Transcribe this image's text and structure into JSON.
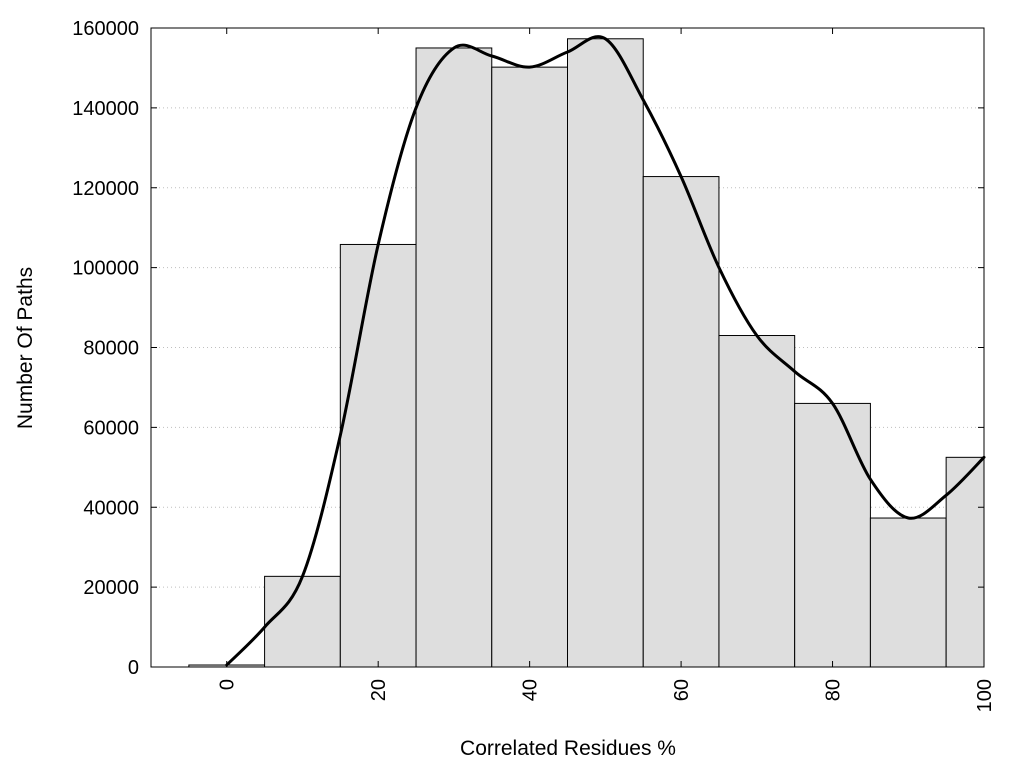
{
  "chart_data": {
    "type": "bar",
    "title": "",
    "xlabel": "Correlated Residues %",
    "ylabel": "Number Of Paths",
    "xlim": [
      -10,
      100
    ],
    "ylim": [
      0,
      160000
    ],
    "x_ticks": [
      0,
      20,
      40,
      60,
      80,
      100
    ],
    "y_ticks": [
      0,
      20000,
      40000,
      60000,
      80000,
      100000,
      120000,
      140000,
      160000
    ],
    "grid": "horizontal dotted",
    "bar_width": 10,
    "bar_color": "#dedede",
    "bins": [
      {
        "x": 0,
        "value": 500
      },
      {
        "x": 10,
        "value": 22700
      },
      {
        "x": 20,
        "value": 105800
      },
      {
        "x": 30,
        "value": 155000
      },
      {
        "x": 40,
        "value": 150200
      },
      {
        "x": 50,
        "value": 157300
      },
      {
        "x": 60,
        "value": 122800
      },
      {
        "x": 70,
        "value": 83000
      },
      {
        "x": 80,
        "value": 66000
      },
      {
        "x": 90,
        "value": 37300
      },
      {
        "x": 100,
        "value": 52500
      }
    ],
    "curve": {
      "type": "line",
      "smooth": true,
      "color": "#000000",
      "points": [
        [
          0,
          500
        ],
        [
          5,
          10000
        ],
        [
          10,
          22700
        ],
        [
          15,
          58000
        ],
        [
          20,
          105800
        ],
        [
          25,
          140000
        ],
        [
          30,
          155000
        ],
        [
          35,
          153000
        ],
        [
          40,
          150200
        ],
        [
          45,
          154000
        ],
        [
          50,
          157300
        ],
        [
          55,
          142000
        ],
        [
          60,
          122800
        ],
        [
          65,
          100000
        ],
        [
          70,
          83000
        ],
        [
          75,
          74000
        ],
        [
          80,
          66000
        ],
        [
          85,
          47000
        ],
        [
          90,
          37300
        ],
        [
          95,
          43000
        ],
        [
          100,
          52500
        ]
      ]
    }
  }
}
